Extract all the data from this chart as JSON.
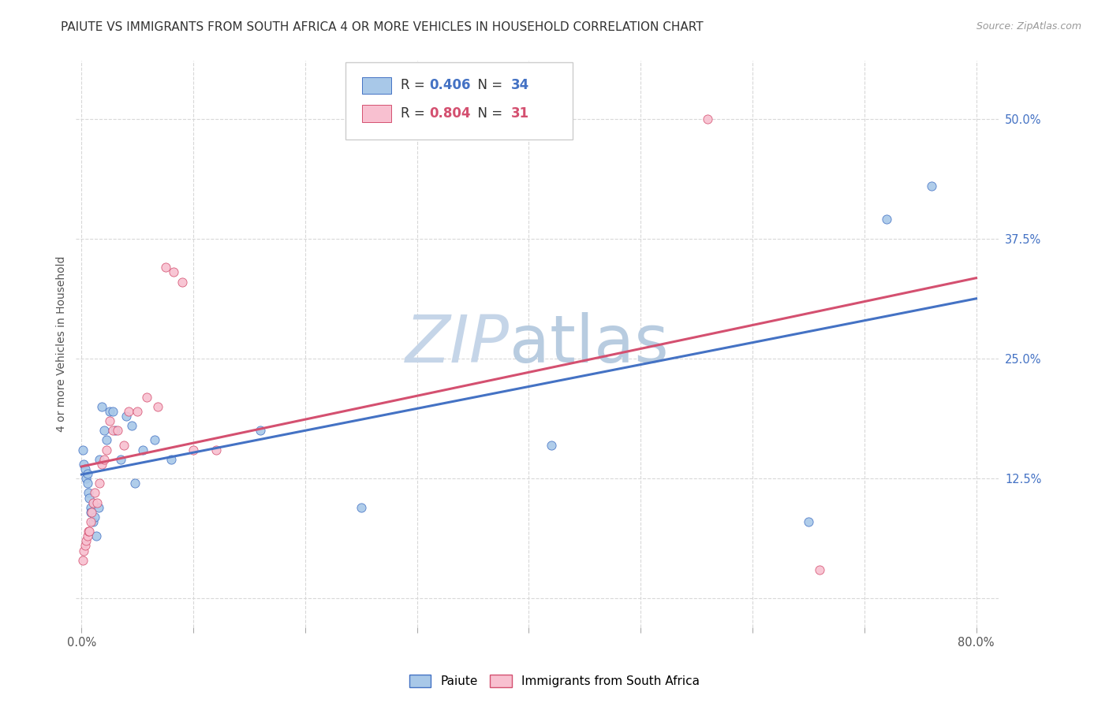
{
  "title": "PAIUTE VS IMMIGRANTS FROM SOUTH AFRICA 4 OR MORE VEHICLES IN HOUSEHOLD CORRELATION CHART",
  "source": "Source: ZipAtlas.com",
  "ylabel": "4 or more Vehicles in Household",
  "watermark_zip": "ZIP",
  "watermark_atlas": "atlas",
  "legend_paiute": "Paiute",
  "legend_immigrants": "Immigrants from South Africa",
  "r_paiute": 0.406,
  "n_paiute": 34,
  "r_immigrants": 0.804,
  "n_immigrants": 31,
  "xlim": [
    -0.005,
    0.82
  ],
  "ylim": [
    -0.03,
    0.56
  ],
  "xticks": [
    0.0,
    0.1,
    0.2,
    0.3,
    0.4,
    0.5,
    0.6,
    0.7,
    0.8
  ],
  "xticklabels": [
    "0.0%",
    "",
    "",
    "",
    "",
    "",
    "",
    "",
    "80.0%"
  ],
  "yticks": [
    0.0,
    0.125,
    0.25,
    0.375,
    0.5
  ],
  "yticklabels": [
    "",
    "12.5%",
    "25.0%",
    "37.5%",
    "50.0%"
  ],
  "color_paiute": "#a8c8e8",
  "color_immigrants": "#f8c0d0",
  "line_color_paiute": "#4472c4",
  "line_color_immigrants": "#d45070",
  "background_color": "#ffffff",
  "grid_color": "#d8d8d8",
  "paiute_x": [
    0.001,
    0.002,
    0.003,
    0.004,
    0.005,
    0.005,
    0.006,
    0.007,
    0.008,
    0.008,
    0.01,
    0.012,
    0.013,
    0.015,
    0.016,
    0.018,
    0.02,
    0.022,
    0.025,
    0.028,
    0.03,
    0.035,
    0.04,
    0.045,
    0.048,
    0.055,
    0.065,
    0.08,
    0.16,
    0.25,
    0.42,
    0.65,
    0.72,
    0.76
  ],
  "paiute_y": [
    0.155,
    0.14,
    0.135,
    0.125,
    0.13,
    0.12,
    0.11,
    0.105,
    0.095,
    0.09,
    0.08,
    0.085,
    0.065,
    0.095,
    0.145,
    0.2,
    0.175,
    0.165,
    0.195,
    0.195,
    0.175,
    0.145,
    0.19,
    0.18,
    0.12,
    0.155,
    0.165,
    0.145,
    0.175,
    0.095,
    0.16,
    0.08,
    0.395,
    0.43
  ],
  "immigrants_x": [
    0.001,
    0.002,
    0.003,
    0.004,
    0.005,
    0.006,
    0.007,
    0.008,
    0.009,
    0.01,
    0.012,
    0.014,
    0.016,
    0.018,
    0.02,
    0.022,
    0.025,
    0.028,
    0.032,
    0.038,
    0.042,
    0.05,
    0.058,
    0.068,
    0.075,
    0.082,
    0.09,
    0.1,
    0.12,
    0.56,
    0.66
  ],
  "immigrants_y": [
    0.04,
    0.05,
    0.055,
    0.06,
    0.065,
    0.07,
    0.07,
    0.08,
    0.09,
    0.1,
    0.11,
    0.1,
    0.12,
    0.14,
    0.145,
    0.155,
    0.185,
    0.175,
    0.175,
    0.16,
    0.195,
    0.195,
    0.21,
    0.2,
    0.345,
    0.34,
    0.33,
    0.155,
    0.155,
    0.5,
    0.03
  ],
  "title_fontsize": 11,
  "axis_label_fontsize": 10,
  "tick_fontsize": 10.5,
  "watermark_zip_fontsize": 60,
  "watermark_atlas_fontsize": 60,
  "watermark_zip_color": "#c5d5e8",
  "watermark_atlas_color": "#b8cce0"
}
